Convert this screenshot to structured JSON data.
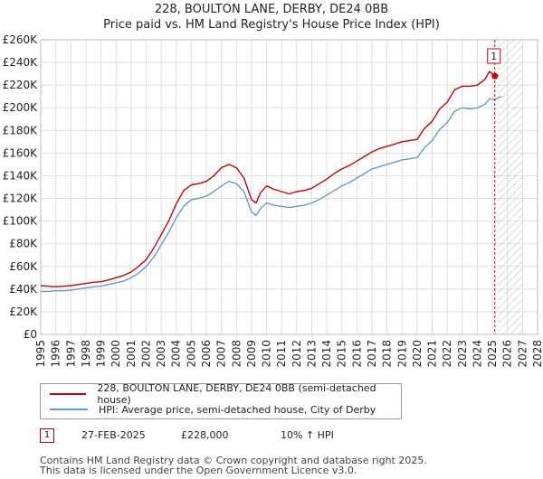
{
  "header": {
    "title": "228, BOULTON LANE, DERBY, DE24 0BB",
    "subtitle": "Price paid vs. HM Land Registry's House Price Index (HPI)"
  },
  "chart_data": {
    "type": "line",
    "title": "228, BOULTON LANE, DERBY, DE24 0BB",
    "subtitle": "Price paid vs. HM Land Registry's House Price Index (HPI)",
    "xlabel": "",
    "ylabel": "",
    "xlim": [
      1995,
      2028
    ],
    "ylim": [
      0,
      260000
    ],
    "grid": true,
    "y_ticks": [
      {
        "value": 0,
        "label": "£0"
      },
      {
        "value": 20000,
        "label": "£20K"
      },
      {
        "value": 40000,
        "label": "£40K"
      },
      {
        "value": 60000,
        "label": "£60K"
      },
      {
        "value": 80000,
        "label": "£80K"
      },
      {
        "value": 100000,
        "label": "£100K"
      },
      {
        "value": 120000,
        "label": "£120K"
      },
      {
        "value": 140000,
        "label": "£140K"
      },
      {
        "value": 160000,
        "label": "£160K"
      },
      {
        "value": 180000,
        "label": "£180K"
      },
      {
        "value": 200000,
        "label": "£200K"
      },
      {
        "value": 220000,
        "label": "£220K"
      },
      {
        "value": 240000,
        "label": "£240K"
      },
      {
        "value": 260000,
        "label": "£260K"
      }
    ],
    "x_ticks": [
      "1995",
      "1996",
      "1997",
      "1998",
      "1999",
      "2000",
      "2001",
      "2002",
      "2003",
      "2004",
      "2005",
      "2006",
      "2007",
      "2008",
      "2009",
      "2010",
      "2011",
      "2012",
      "2013",
      "2014",
      "2015",
      "2016",
      "2017",
      "2018",
      "2019",
      "2020",
      "2021",
      "2022",
      "2023",
      "2024",
      "2025",
      "2026",
      "2027",
      "2028"
    ],
    "forecast_start": 2025.4,
    "series": [
      {
        "name": "228, BOULTON LANE, DERBY, DE24 0BB (semi-detached house)",
        "color": "#cc0000",
        "points": [
          [
            1995,
            43000
          ],
          [
            1995.5,
            42500
          ],
          [
            1996,
            42000
          ],
          [
            1996.5,
            42500
          ],
          [
            1997,
            43000
          ],
          [
            1997.5,
            44000
          ],
          [
            1998,
            45000
          ],
          [
            1998.5,
            46000
          ],
          [
            1999,
            46500
          ],
          [
            1999.5,
            48000
          ],
          [
            2000,
            50000
          ],
          [
            2000.5,
            52000
          ],
          [
            2001,
            55000
          ],
          [
            2001.5,
            60000
          ],
          [
            2002,
            66000
          ],
          [
            2002.5,
            76000
          ],
          [
            2003,
            88000
          ],
          [
            2003.5,
            100000
          ],
          [
            2004,
            115000
          ],
          [
            2004.5,
            127000
          ],
          [
            2005,
            132000
          ],
          [
            2005.5,
            133000
          ],
          [
            2006,
            135000
          ],
          [
            2006.5,
            140000
          ],
          [
            2007,
            147000
          ],
          [
            2007.5,
            150000
          ],
          [
            2008,
            147000
          ],
          [
            2008.5,
            138000
          ],
          [
            2009,
            119000
          ],
          [
            2009.3,
            116000
          ],
          [
            2009.6,
            125000
          ],
          [
            2010,
            131000
          ],
          [
            2010.5,
            128000
          ],
          [
            2011,
            126000
          ],
          [
            2011.5,
            124000
          ],
          [
            2012,
            126000
          ],
          [
            2012.5,
            127000
          ],
          [
            2013,
            129000
          ],
          [
            2013.5,
            133000
          ],
          [
            2014,
            137000
          ],
          [
            2014.5,
            142000
          ],
          [
            2015,
            146000
          ],
          [
            2015.5,
            149000
          ],
          [
            2016,
            153000
          ],
          [
            2016.5,
            157000
          ],
          [
            2017,
            161000
          ],
          [
            2017.5,
            164000
          ],
          [
            2018,
            166000
          ],
          [
            2018.5,
            168000
          ],
          [
            2019,
            170000
          ],
          [
            2019.5,
            171000
          ],
          [
            2020,
            172000
          ],
          [
            2020.5,
            182000
          ],
          [
            2021,
            188000
          ],
          [
            2021.5,
            199000
          ],
          [
            2022,
            205000
          ],
          [
            2022.5,
            216000
          ],
          [
            2023,
            219000
          ],
          [
            2023.5,
            219000
          ],
          [
            2024,
            220000
          ],
          [
            2024.5,
            225000
          ],
          [
            2024.8,
            232000
          ],
          [
            2025.16,
            228000
          ],
          [
            2025.4,
            229000
          ]
        ]
      },
      {
        "name": "HPI: Average price, semi-detached house, City of Derby",
        "color": "#6699cc",
        "points": [
          [
            1995,
            38000
          ],
          [
            1995.5,
            38000
          ],
          [
            1996,
            38500
          ],
          [
            1996.5,
            38500
          ],
          [
            1997,
            39000
          ],
          [
            1997.5,
            40000
          ],
          [
            1998,
            41000
          ],
          [
            1998.5,
            42000
          ],
          [
            1999,
            42500
          ],
          [
            1999.5,
            44000
          ],
          [
            2000,
            45500
          ],
          [
            2000.5,
            47000
          ],
          [
            2001,
            50000
          ],
          [
            2001.5,
            54000
          ],
          [
            2002,
            60000
          ],
          [
            2002.5,
            68000
          ],
          [
            2003,
            79000
          ],
          [
            2003.5,
            90000
          ],
          [
            2004,
            103000
          ],
          [
            2004.5,
            113000
          ],
          [
            2005,
            119000
          ],
          [
            2005.5,
            120000
          ],
          [
            2006,
            122000
          ],
          [
            2006.5,
            126000
          ],
          [
            2007,
            131000
          ],
          [
            2007.5,
            135000
          ],
          [
            2008,
            133000
          ],
          [
            2008.5,
            126000
          ],
          [
            2009,
            108000
          ],
          [
            2009.3,
            105000
          ],
          [
            2009.6,
            111000
          ],
          [
            2010,
            116000
          ],
          [
            2010.5,
            114000
          ],
          [
            2011,
            113000
          ],
          [
            2011.5,
            112000
          ],
          [
            2012,
            113000
          ],
          [
            2012.5,
            114000
          ],
          [
            2013,
            116000
          ],
          [
            2013.5,
            119000
          ],
          [
            2014,
            123000
          ],
          [
            2014.5,
            127000
          ],
          [
            2015,
            131000
          ],
          [
            2015.5,
            134000
          ],
          [
            2016,
            138000
          ],
          [
            2016.5,
            142000
          ],
          [
            2017,
            146000
          ],
          [
            2017.5,
            148000
          ],
          [
            2018,
            150000
          ],
          [
            2018.5,
            152000
          ],
          [
            2019,
            154000
          ],
          [
            2019.5,
            155000
          ],
          [
            2020,
            156000
          ],
          [
            2020.5,
            165000
          ],
          [
            2021,
            171000
          ],
          [
            2021.5,
            181000
          ],
          [
            2022,
            187000
          ],
          [
            2022.5,
            197000
          ],
          [
            2023,
            200000
          ],
          [
            2023.5,
            199000
          ],
          [
            2024,
            200000
          ],
          [
            2024.5,
            203000
          ],
          [
            2024.8,
            208000
          ],
          [
            2025.16,
            207000
          ],
          [
            2025.4,
            209000
          ],
          [
            2025.6,
            210000
          ]
        ]
      }
    ],
    "annotations": [
      {
        "label": "1",
        "x": 2025.16,
        "y": 228000
      }
    ]
  },
  "legend": [
    {
      "label": "228, BOULTON LANE, DERBY, DE24 0BB (semi-detached house)",
      "color": "#cc0000"
    },
    {
      "label": "HPI: Average price, semi-detached house, City of Derby",
      "color": "#6699cc"
    }
  ],
  "transactions": [
    {
      "marker": "1",
      "date": "27-FEB-2025",
      "price": "£228,000",
      "hpi": "10% ↑ HPI"
    }
  ],
  "footer": {
    "line1": "Contains HM Land Registry data © Crown copyright and database right 2025.",
    "line2": "This data is licensed under the Open Government Licence v3.0."
  }
}
